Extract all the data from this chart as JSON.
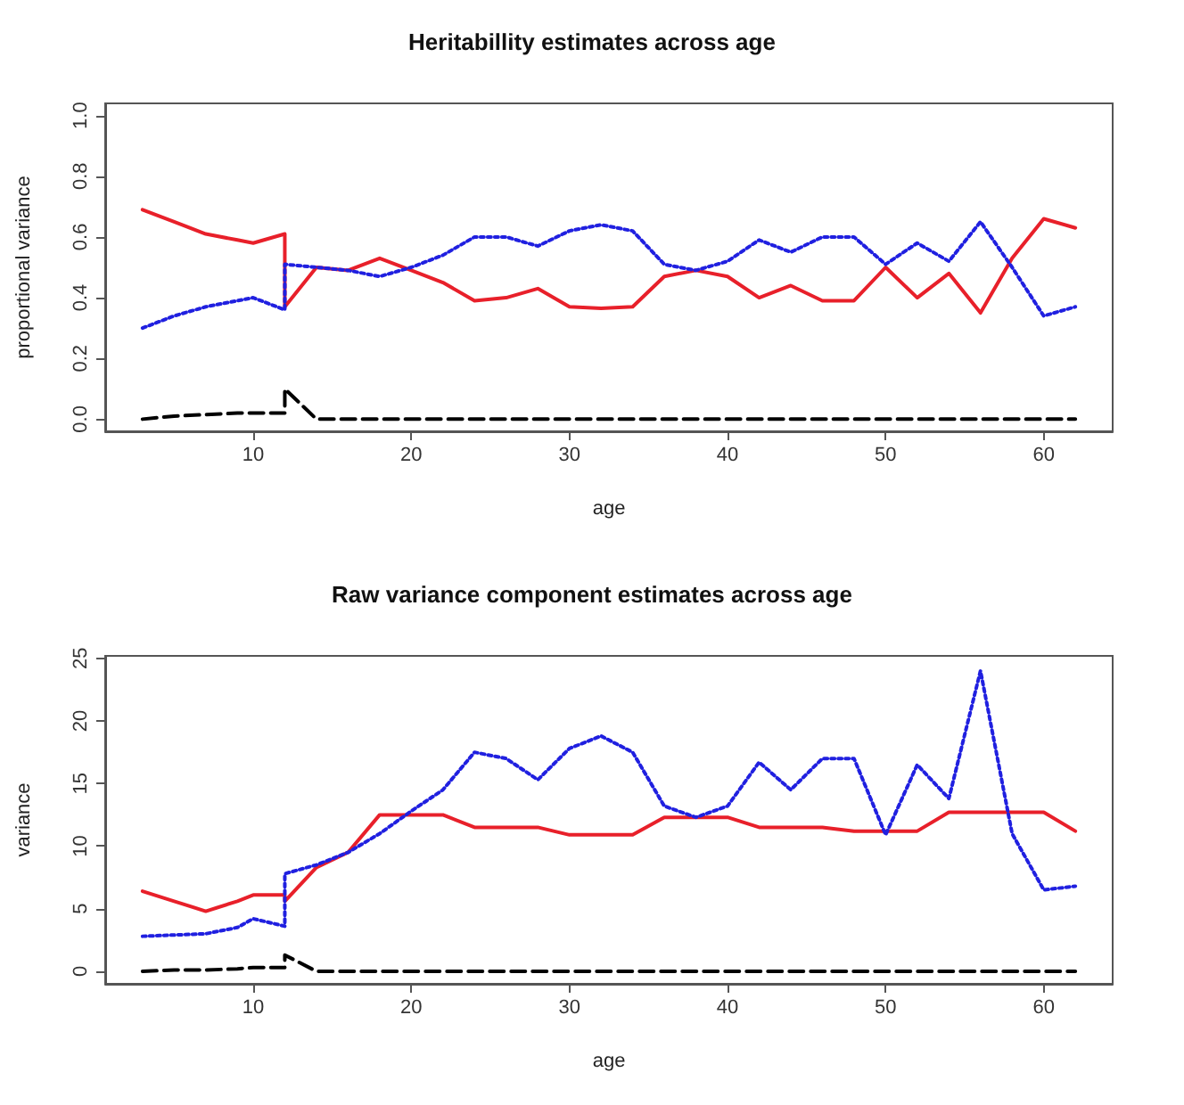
{
  "chart_data": [
    {
      "type": "line",
      "title": "Heritabillity estimates across age",
      "xlabel": "age",
      "ylabel": "proportional variance",
      "x": [
        3,
        5,
        7,
        9,
        10,
        12,
        12,
        14,
        16,
        18,
        20,
        22,
        24,
        26,
        28,
        30,
        32,
        34,
        36,
        38,
        40,
        42,
        44,
        46,
        48,
        50,
        52,
        54,
        56,
        58,
        60,
        62
      ],
      "series": [
        {
          "color": "#e8202a",
          "line_style": "solid",
          "values": [
            0.69,
            0.65,
            0.61,
            0.59,
            0.58,
            0.61,
            0.37,
            0.5,
            0.49,
            0.53,
            0.49,
            0.45,
            0.39,
            0.4,
            0.43,
            0.37,
            0.365,
            0.37,
            0.47,
            0.49,
            0.47,
            0.4,
            0.44,
            0.39,
            0.39,
            0.5,
            0.4,
            0.48,
            0.35,
            0.53,
            0.66,
            0.63
          ]
        },
        {
          "color": "#2020e0",
          "line_style": "dotted",
          "values": [
            0.3,
            0.34,
            0.37,
            0.39,
            0.4,
            0.36,
            0.51,
            0.5,
            0.49,
            0.47,
            0.5,
            0.54,
            0.6,
            0.6,
            0.57,
            0.62,
            0.64,
            0.62,
            0.51,
            0.49,
            0.52,
            0.59,
            0.55,
            0.6,
            0.6,
            0.51,
            0.58,
            0.52,
            0.65,
            0.5,
            0.34,
            0.37
          ]
        },
        {
          "color": "#000000",
          "line_style": "dashed",
          "values": [
            0,
            0.01,
            0.015,
            0.02,
            0.02,
            0.02,
            0.1,
            0,
            0,
            0,
            0,
            0,
            0,
            0,
            0,
            0,
            0,
            0,
            0,
            0,
            0,
            0,
            0,
            0,
            0,
            0,
            0,
            0,
            0,
            0,
            0,
            0
          ]
        }
      ],
      "xlim": [
        0.64,
        64.36
      ],
      "xticks": [
        10,
        20,
        30,
        40,
        50,
        60
      ],
      "ylim": [
        -0.04,
        1.04
      ],
      "yticks": [
        {
          "value": 0,
          "label": "0.0"
        },
        {
          "value": 0.2,
          "label": "0.2"
        },
        {
          "value": 0.4,
          "label": "0.4"
        },
        {
          "value": 0.6,
          "label": "0.6"
        },
        {
          "value": 0.8,
          "label": "0.8"
        },
        {
          "value": 1,
          "label": "1.0"
        }
      ],
      "grid": false,
      "marker": "none"
    },
    {
      "type": "line",
      "title": "Raw variance component estimates across age",
      "xlabel": "age",
      "ylabel": "variance",
      "x": [
        3,
        5,
        7,
        9,
        10,
        12,
        12,
        14,
        16,
        18,
        20,
        22,
        24,
        26,
        28,
        30,
        32,
        34,
        36,
        38,
        40,
        42,
        44,
        46,
        48,
        50,
        52,
        54,
        56,
        58,
        60,
        62
      ],
      "series": [
        {
          "color": "#e8202a",
          "line_style": "solid",
          "values": [
            6.4,
            5.6,
            4.8,
            5.6,
            6.1,
            6.1,
            5.6,
            8.3,
            9.5,
            12.5,
            12.5,
            12.5,
            11.5,
            11.5,
            11.5,
            10.9,
            10.9,
            10.9,
            12.3,
            12.3,
            12.3,
            11.5,
            11.5,
            11.5,
            11.2,
            11.2,
            11.2,
            12.7,
            12.7,
            12.7,
            12.7,
            11.2
          ]
        },
        {
          "color": "#2020e0",
          "line_style": "dotted",
          "values": [
            2.8,
            2.9,
            3.0,
            3.5,
            4.2,
            3.6,
            7.8,
            8.5,
            9.5,
            11.0,
            12.8,
            14.5,
            17.5,
            17.0,
            15.3,
            17.8,
            18.8,
            17.5,
            13.2,
            12.3,
            13.2,
            16.7,
            14.5,
            17.0,
            17.0,
            10.9,
            16.5,
            13.8,
            24.0,
            11.0,
            6.5,
            6.8
          ]
        },
        {
          "color": "#000000",
          "line_style": "dashed",
          "values": [
            0,
            0.1,
            0.1,
            0.2,
            0.3,
            0.3,
            1.3,
            0,
            0,
            0,
            0,
            0,
            0,
            0,
            0,
            0,
            0,
            0,
            0,
            0,
            0,
            0,
            0,
            0,
            0,
            0,
            0,
            0,
            0,
            0,
            0,
            0
          ]
        }
      ],
      "xlim": [
        0.64,
        64.36
      ],
      "xticks": [
        10,
        20,
        30,
        40,
        50,
        60
      ],
      "ylim": [
        -1,
        25.2
      ],
      "yticks": [
        0,
        5,
        10,
        15,
        20,
        25
      ],
      "grid": false,
      "marker": "none"
    }
  ]
}
